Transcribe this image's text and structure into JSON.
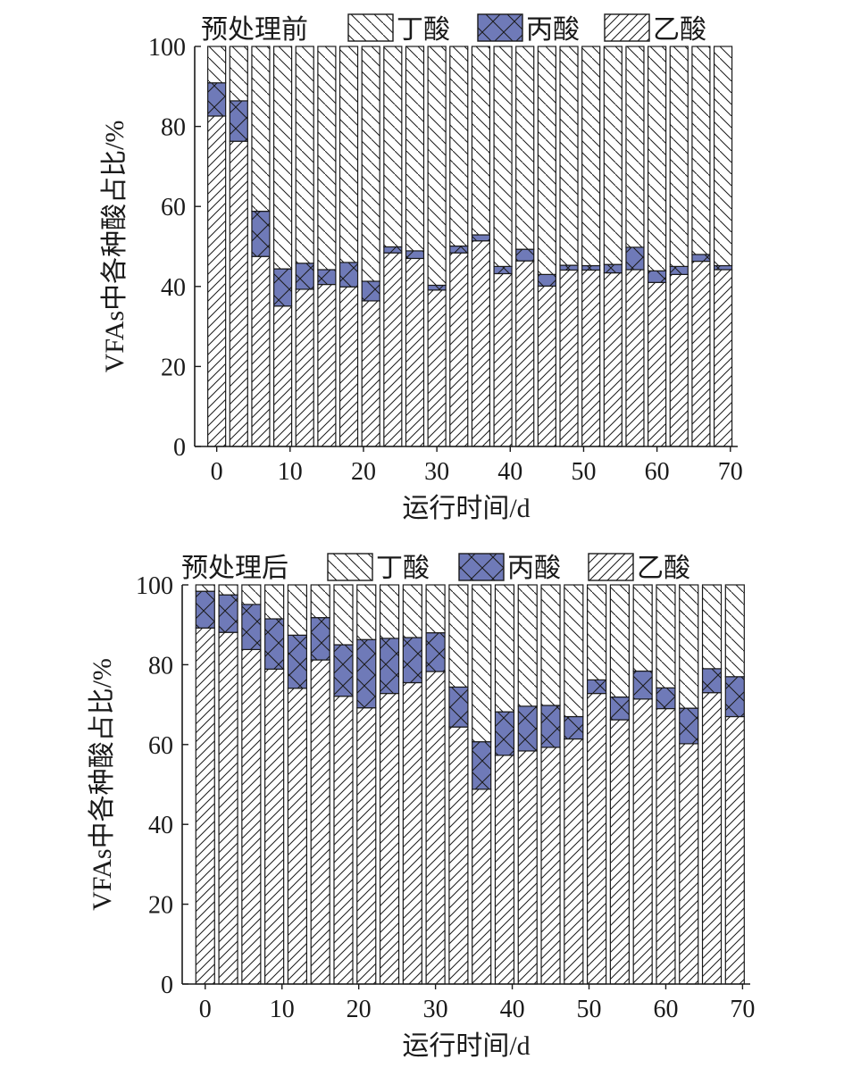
{
  "colors": {
    "butyric_fill": "#ffffff",
    "propionic_fill": "#6f7ab8",
    "acetic_fill": "#ffffff",
    "stroke": "#1a1a1a"
  },
  "chart_data": [
    {
      "type": "bar",
      "stacked": true,
      "title": "预处理前",
      "xlabel": "运行时间/d",
      "ylabel": "VFAs中各种酸占比/%",
      "ylim": [
        0,
        100
      ],
      "xlim": [
        -3,
        71
      ],
      "yticks": [
        0,
        20,
        40,
        60,
        80,
        100
      ],
      "xticks": [
        0,
        10,
        20,
        30,
        40,
        50,
        60,
        70
      ],
      "grid": false,
      "legend_position": "top",
      "x": [
        0,
        3,
        6,
        9,
        12,
        15,
        18,
        21,
        24,
        27,
        30,
        33,
        36,
        39,
        42,
        45,
        48,
        51,
        54,
        57,
        60,
        63,
        66,
        69
      ],
      "series": [
        {
          "name": "乙酸",
          "pattern": "diagonal-forward",
          "values": [
            82.6,
            76.3,
            47.5,
            35.1,
            39.3,
            40.5,
            39.9,
            36.4,
            48.4,
            47.0,
            39.1,
            48.4,
            51.4,
            43.2,
            46.4,
            40.1,
            44.1,
            44.1,
            43.4,
            44.2,
            41.0,
            43.0,
            46.3,
            44.2
          ]
        },
        {
          "name": "丙酸",
          "pattern": "crosshatch",
          "values": [
            8.3,
            10.1,
            11.3,
            9.3,
            6.5,
            3.7,
            6.1,
            4.9,
            1.5,
            1.9,
            1.2,
            1.7,
            1.5,
            1.8,
            2.9,
            2.9,
            1.2,
            1.1,
            2.1,
            5.6,
            2.9,
            2.0,
            1.7,
            1.0
          ]
        },
        {
          "name": "丁酸",
          "pattern": "diagonal-back",
          "values": [
            9.1,
            13.6,
            41.2,
            55.6,
            54.2,
            55.8,
            54.0,
            58.7,
            50.1,
            51.1,
            59.7,
            49.9,
            47.1,
            55.0,
            50.7,
            57.0,
            54.7,
            54.8,
            54.5,
            50.2,
            56.1,
            55.0,
            52.0,
            54.8
          ]
        }
      ]
    },
    {
      "type": "bar",
      "stacked": true,
      "title": "预处理后",
      "xlabel": "运行时间/d",
      "ylabel": "VFAs中各种酸占比/%",
      "ylim": [
        0,
        100
      ],
      "xlim": [
        -3,
        71
      ],
      "yticks": [
        0,
        20,
        40,
        60,
        80,
        100
      ],
      "xticks": [
        0,
        10,
        20,
        30,
        40,
        50,
        60,
        70
      ],
      "grid": false,
      "legend_position": "top",
      "x": [
        0,
        3,
        6,
        9,
        12,
        15,
        18,
        21,
        24,
        27,
        30,
        33,
        36,
        39,
        42,
        45,
        48,
        51,
        54,
        57,
        60,
        63,
        66,
        69
      ],
      "series": [
        {
          "name": "乙酸",
          "pattern": "diagonal-forward",
          "values": [
            89.2,
            88.1,
            83.8,
            78.9,
            74.1,
            81.2,
            72.1,
            69.2,
            72.8,
            75.5,
            78.3,
            64.4,
            48.8,
            57.3,
            58.4,
            59.3,
            61.4,
            72.8,
            66.2,
            71.4,
            69.0,
            60.2,
            73.0,
            67.0
          ]
        },
        {
          "name": "丙酸",
          "pattern": "crosshatch",
          "values": [
            9.2,
            9.4,
            11.3,
            12.6,
            13.3,
            10.6,
            12.9,
            17.1,
            13.8,
            11.3,
            9.7,
            10.0,
            11.9,
            10.9,
            11.2,
            10.5,
            5.6,
            3.4,
            5.7,
            7.0,
            5.2,
            8.9,
            6.0,
            10.0
          ]
        },
        {
          "name": "丁酸",
          "pattern": "diagonal-back",
          "values": [
            1.6,
            2.5,
            4.9,
            8.5,
            12.6,
            8.2,
            15.0,
            13.7,
            13.4,
            13.2,
            12.0,
            25.6,
            39.3,
            31.8,
            30.4,
            30.2,
            33.0,
            23.8,
            28.1,
            21.6,
            25.8,
            30.9,
            21.0,
            23.0
          ]
        }
      ]
    }
  ]
}
